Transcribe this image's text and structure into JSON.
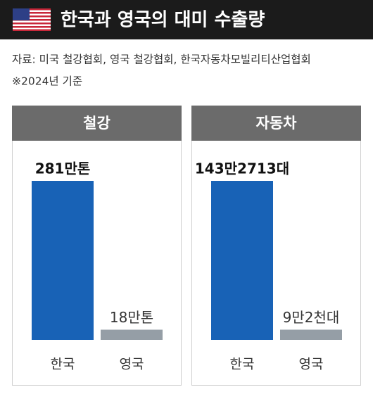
{
  "title": "한국과 영국의 대미 수출량",
  "source": "자료: 미국 철강협회, 영국 철강협회, 한국자동차모빌리티산업협회",
  "note": "※2024년 기준",
  "chart_data": [
    {
      "type": "bar",
      "title": "철강",
      "categories": [
        "한국",
        "영국"
      ],
      "values": [
        281,
        18
      ],
      "value_labels": [
        "281만톤",
        "18만톤"
      ],
      "colors": [
        "#1862b6",
        "#959ea6"
      ]
    },
    {
      "type": "bar",
      "title": "자동차",
      "categories": [
        "한국",
        "영국"
      ],
      "values": [
        1432713,
        92000
      ],
      "value_labels": [
        "143만2713대",
        "9만2천대"
      ],
      "colors": [
        "#1862b6",
        "#959ea6"
      ]
    }
  ]
}
